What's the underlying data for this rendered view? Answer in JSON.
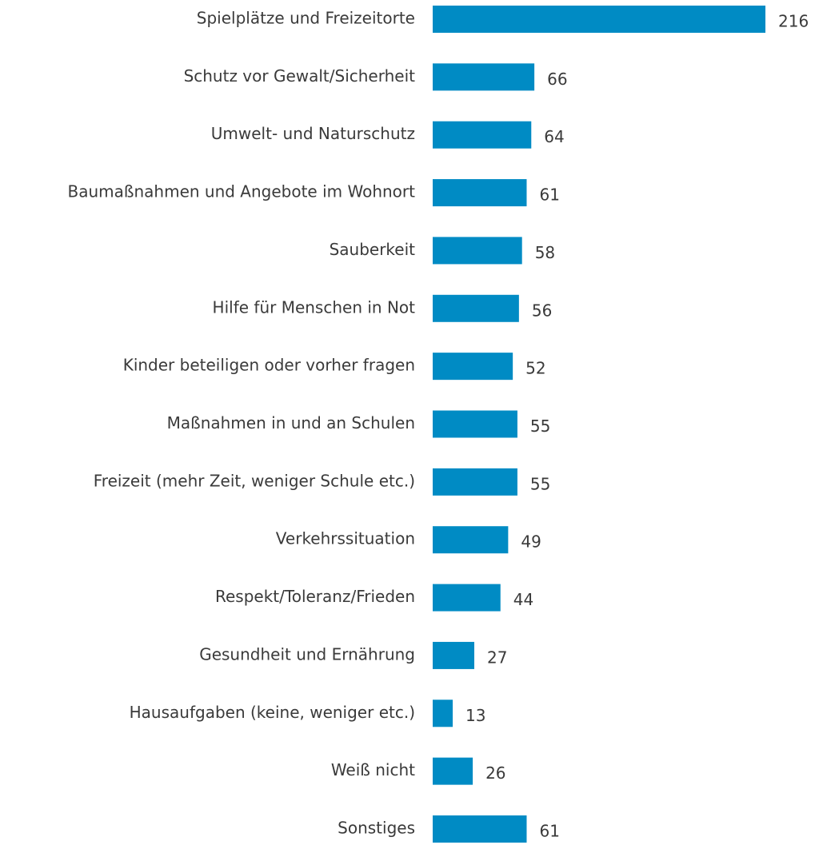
{
  "chart_data": {
    "type": "bar",
    "orientation": "horizontal",
    "color": "#008bc4",
    "categories": [
      "Spielplätze und Freizeitorte",
      "Schutz vor Gewalt/Sicherheit",
      "Umwelt- und Naturschutz",
      "Baumaßnahmen und Angebote im Wohnort",
      "Sauberkeit",
      "Hilfe für Menschen in Not",
      "Kinder beteiligen oder vorher fragen",
      "Maßnahmen in und an Schulen",
      "Freizeit (mehr Zeit, weniger Schule etc.)",
      "Verkehrssituation",
      "Respekt/Toleranz/Frieden",
      "Gesundheit und Ernährung",
      "Hausaufgaben (keine, weniger etc.)",
      "Weiß nicht",
      "Sonstiges"
    ],
    "values": [
      216,
      66,
      64,
      61,
      58,
      56,
      52,
      55,
      55,
      49,
      44,
      27,
      13,
      26,
      61
    ]
  }
}
